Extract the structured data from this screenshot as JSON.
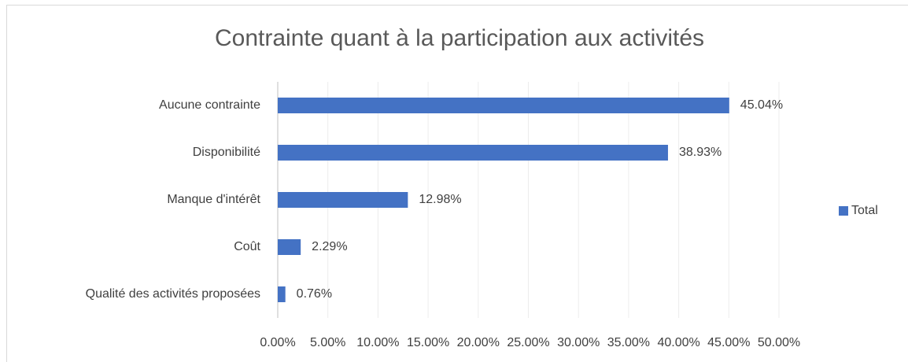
{
  "chart_data": {
    "type": "hbar",
    "title": "Contrainte quant à la participation aux activités",
    "categories": [
      "Aucune contrainte",
      "Disponibilité",
      "Manque d'intérêt",
      "Coût",
      "Qualité des activités proposées"
    ],
    "series": [
      {
        "name": "Total",
        "color": "#4472c4",
        "values": [
          45.04,
          38.93,
          12.98,
          2.29,
          0.76
        ],
        "value_labels": [
          "45.04%",
          "38.93%",
          "12.98%",
          "2.29%",
          "0.76%"
        ]
      }
    ],
    "xlim": [
      0,
      50
    ],
    "xticks": [
      {
        "value": 0,
        "label": "0.00%"
      },
      {
        "value": 5,
        "label": "5.00%"
      },
      {
        "value": 10,
        "label": "10.00%"
      },
      {
        "value": 15,
        "label": "15.00%"
      },
      {
        "value": 20,
        "label": "20.00%"
      },
      {
        "value": 25,
        "label": "25.00%"
      },
      {
        "value": 30,
        "label": "30.00%"
      },
      {
        "value": 35,
        "label": "35.00%"
      },
      {
        "value": 40,
        "label": "40.00%"
      },
      {
        "value": 45,
        "label": "45.00%"
      },
      {
        "value": 50,
        "label": "50.00%"
      }
    ],
    "grid": true,
    "legend": "right"
  }
}
